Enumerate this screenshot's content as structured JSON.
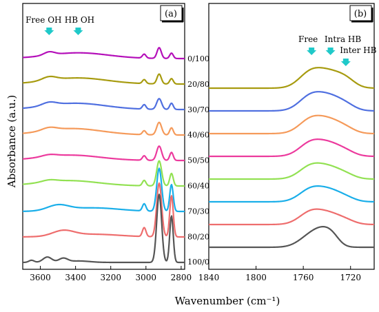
{
  "chart_data": {
    "type": "line",
    "xlabel": "Wavenumber (cm⁻¹)",
    "ylabel": "Absorbance (a.u.)",
    "panels": [
      {
        "panel_label": "(a)",
        "xlim": [
          3700,
          2780
        ],
        "xticks": [
          "3600",
          "3400",
          "3200",
          "3000",
          "2800"
        ],
        "xtick_values": [
          3600,
          3400,
          3200,
          3000,
          2800
        ],
        "annotations": [
          {
            "text": "Free OH",
            "x": 3550
          },
          {
            "text": "HB OH",
            "x": 3385
          }
        ],
        "series": [
          {
            "name": "0/100",
            "color": "#b40fb9",
            "peaks": [
              [
                3550,
                0.18,
                30
              ],
              [
                3385,
                0.32,
                170
              ],
              [
                3010,
                0.22,
                10
              ],
              [
                2925,
                0.6,
                12
              ],
              [
                2855,
                0.3,
                10
              ]
            ]
          },
          {
            "name": "20/80",
            "color": "#a79b0f",
            "peaks": [
              [
                3550,
                0.2,
                40
              ],
              [
                3390,
                0.34,
                170
              ],
              [
                3010,
                0.22,
                10
              ],
              [
                2925,
                0.55,
                12
              ],
              [
                2855,
                0.3,
                10
              ]
            ]
          },
          {
            "name": "30/70",
            "color": "#4f6fe0",
            "peaks": [
              [
                3550,
                0.18,
                40
              ],
              [
                3400,
                0.35,
                170
              ],
              [
                3010,
                0.25,
                10
              ],
              [
                2925,
                0.6,
                14
              ],
              [
                2855,
                0.35,
                10
              ]
            ]
          },
          {
            "name": "40/60",
            "color": "#f59a5a",
            "peaks": [
              [
                3550,
                0.16,
                40
              ],
              [
                3420,
                0.36,
                170
              ],
              [
                3010,
                0.22,
                10
              ],
              [
                2925,
                0.7,
                14
              ],
              [
                2855,
                0.4,
                10
              ]
            ]
          },
          {
            "name": "50/50",
            "color": "#ec3a9d",
            "peaks": [
              [
                3550,
                0.1,
                40
              ],
              [
                3430,
                0.3,
                170
              ],
              [
                3010,
                0.25,
                10
              ],
              [
                2925,
                0.8,
                14
              ],
              [
                2855,
                0.45,
                10
              ]
            ]
          },
          {
            "name": "60/40",
            "color": "#92e152",
            "peaks": [
              [
                3550,
                0.1,
                40
              ],
              [
                3440,
                0.3,
                170
              ],
              [
                3010,
                0.3,
                10
              ],
              [
                2925,
                1.4,
                14
              ],
              [
                2855,
                0.7,
                10
              ]
            ]
          },
          {
            "name": "70/30",
            "color": "#19aee9",
            "peaks": [
              [
                3500,
                0.3,
                60
              ],
              [
                3300,
                0.2,
                150
              ],
              [
                3010,
                0.4,
                10
              ],
              [
                2925,
                2.4,
                14
              ],
              [
                2855,
                1.5,
                10
              ]
            ]
          },
          {
            "name": "80/20",
            "color": "#ee6d6d",
            "peaks": [
              [
                3470,
                0.3,
                60
              ],
              [
                3300,
                0.15,
                150
              ],
              [
                3010,
                0.5,
                10
              ],
              [
                2925,
                3.0,
                14
              ],
              [
                2855,
                2.3,
                10
              ]
            ]
          },
          {
            "name": "100/0",
            "color": "#555555",
            "peaks": [
              [
                3650,
                0.12,
                15
              ],
              [
                3560,
                0.3,
                25
              ],
              [
                3470,
                0.22,
                25
              ],
              [
                3380,
                0.08,
                60
              ],
              [
                2925,
                3.8,
                14
              ],
              [
                2855,
                2.6,
                10
              ]
            ]
          }
        ]
      },
      {
        "panel_label": "(b)",
        "xlim": [
          1840,
          1700
        ],
        "xticks": [
          "1840",
          "1800",
          "1760",
          "1720"
        ],
        "xtick_values": [
          1840,
          1800,
          1760,
          1720
        ],
        "annotations": [
          {
            "text": "Free",
            "x": 1753
          },
          {
            "text": "Intra HB",
            "x": 1737
          },
          {
            "text": "Inter HB",
            "x": 1724
          }
        ],
        "series": [
          {
            "name": "20/80",
            "color": "#a79b0f",
            "peaks": [
              [
                1753,
                0.45,
                10
              ],
              [
                1737,
                0.32,
                9
              ],
              [
                1724,
                0.22,
                8
              ]
            ]
          },
          {
            "name": "30/70",
            "color": "#4f6fe0",
            "peaks": [
              [
                1753,
                0.42,
                10
              ],
              [
                1737,
                0.3,
                9
              ],
              [
                1724,
                0.15,
                8
              ]
            ]
          },
          {
            "name": "40/60",
            "color": "#f59a5a",
            "peaks": [
              [
                1753,
                0.4,
                10
              ],
              [
                1737,
                0.28,
                9
              ],
              [
                1724,
                0.13,
                8
              ]
            ]
          },
          {
            "name": "50/50",
            "color": "#ec3a9d",
            "peaks": [
              [
                1753,
                0.38,
                10
              ],
              [
                1737,
                0.26,
                9
              ],
              [
                1724,
                0.12,
                8
              ]
            ]
          },
          {
            "name": "60/40",
            "color": "#92e152",
            "peaks": [
              [
                1753,
                0.36,
                10
              ],
              [
                1737,
                0.24,
                9
              ],
              [
                1724,
                0.11,
                8
              ]
            ]
          },
          {
            "name": "70/30",
            "color": "#19aee9",
            "peaks": [
              [
                1753,
                0.35,
                10
              ],
              [
                1737,
                0.24,
                9
              ],
              [
                1724,
                0.1,
                8
              ]
            ]
          },
          {
            "name": "80/20",
            "color": "#ee6d6d",
            "peaks": [
              [
                1753,
                0.35,
                10
              ],
              [
                1737,
                0.22,
                9
              ],
              [
                1724,
                0.1,
                8
              ]
            ]
          },
          {
            "name": "100/0",
            "color": "#555555",
            "peaks": [
              [
                1753,
                0.32,
                10
              ],
              [
                1742,
                0.3,
                8
              ],
              [
                1735,
                0.15,
                6
              ]
            ]
          }
        ]
      }
    ],
    "arrow_color": "#1fc9c9",
    "grid": false,
    "legend": "none"
  }
}
